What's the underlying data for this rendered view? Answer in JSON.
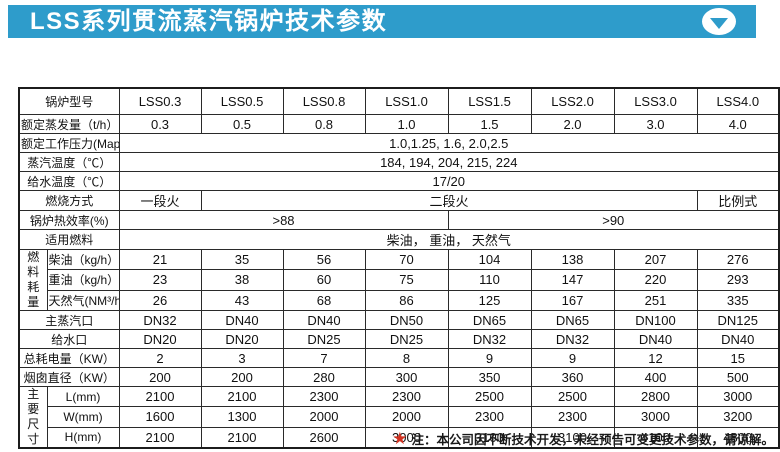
{
  "banner": {
    "title": "LSS系列贯流蒸汽锅炉技术参数",
    "bg_color": "#2e9ccb",
    "arrow_icon": "circle-chevron-down"
  },
  "table": {
    "rows": [
      {
        "cells": [
          {
            "t": "锅炉型号",
            "type": "label",
            "cs": 2
          },
          {
            "t": "LSS0.3",
            "type": "header"
          },
          {
            "t": "LSS0.5",
            "type": "header"
          },
          {
            "t": "LSS0.8",
            "type": "header"
          },
          {
            "t": "LSS1.0",
            "type": "header"
          },
          {
            "t": "LSS1.5",
            "type": "header"
          },
          {
            "t": "LSS2.0",
            "type": "header"
          },
          {
            "t": "LSS3.0",
            "type": "header"
          },
          {
            "t": "LSS4.0",
            "type": "header"
          }
        ]
      },
      {
        "cells": [
          {
            "t": "额定蒸发量（t/h）",
            "type": "label",
            "cs": 2
          },
          {
            "t": "0.3"
          },
          {
            "t": "0.5"
          },
          {
            "t": "0.8"
          },
          {
            "t": "1.0"
          },
          {
            "t": "1.5"
          },
          {
            "t": "2.0"
          },
          {
            "t": "3.0"
          },
          {
            "t": "4.0"
          }
        ]
      },
      {
        "cells": [
          {
            "t": "额定工作压力(Map)",
            "type": "label",
            "cs": 2
          },
          {
            "t": "1.0,1.25, 1.6, 2.0,2.5",
            "cs": 8
          }
        ]
      },
      {
        "cells": [
          {
            "t": "蒸汽温度（℃）",
            "type": "label",
            "cs": 2
          },
          {
            "t": "184, 194, 204, 215, 224",
            "cs": 8
          }
        ]
      },
      {
        "cells": [
          {
            "t": "给水温度（℃）",
            "type": "label",
            "cs": 2
          },
          {
            "t": "17/20",
            "cs": 8
          }
        ]
      },
      {
        "cells": [
          {
            "t": "燃烧方式",
            "type": "label",
            "cs": 2
          },
          {
            "t": "一段火"
          },
          {
            "t": "二段火",
            "cs": 6
          },
          {
            "t": "比例式"
          }
        ]
      },
      {
        "cells": [
          {
            "t": "锅炉热效率(%)",
            "type": "label",
            "cs": 2
          },
          {
            "t": ">88",
            "cs": 4
          },
          {
            "t": ">90",
            "cs": 4
          }
        ]
      },
      {
        "cells": [
          {
            "t": "适用燃料",
            "type": "label",
            "cs": 2
          },
          {
            "t": "柴油， 重油， 天然气",
            "cs": 8
          }
        ]
      },
      {
        "cells": [
          {
            "t": "燃料耗量",
            "type": "group",
            "rs": 3
          },
          {
            "t": "柴油（kg/h）",
            "type": "label"
          },
          {
            "t": "21"
          },
          {
            "t": "35"
          },
          {
            "t": "56"
          },
          {
            "t": "70"
          },
          {
            "t": "104"
          },
          {
            "t": "138"
          },
          {
            "t": "207"
          },
          {
            "t": "276"
          }
        ]
      },
      {
        "cells": [
          {
            "t": "重油（kg/h）",
            "type": "label"
          },
          {
            "t": "23"
          },
          {
            "t": "38"
          },
          {
            "t": "60"
          },
          {
            "t": "75"
          },
          {
            "t": "110"
          },
          {
            "t": "147"
          },
          {
            "t": "220"
          },
          {
            "t": "293"
          }
        ]
      },
      {
        "cells": [
          {
            "t": "天然气(NM³/h)",
            "type": "label"
          },
          {
            "t": "26"
          },
          {
            "t": "43"
          },
          {
            "t": "68"
          },
          {
            "t": "86"
          },
          {
            "t": "125"
          },
          {
            "t": "167"
          },
          {
            "t": "251"
          },
          {
            "t": "335"
          }
        ]
      },
      {
        "cells": [
          {
            "t": "主蒸汽口",
            "type": "label",
            "cs": 2
          },
          {
            "t": "DN32"
          },
          {
            "t": "DN40"
          },
          {
            "t": "DN40"
          },
          {
            "t": "DN50"
          },
          {
            "t": "DN65"
          },
          {
            "t": "DN65"
          },
          {
            "t": "DN100"
          },
          {
            "t": "DN125"
          }
        ]
      },
      {
        "cells": [
          {
            "t": "给水口",
            "type": "label",
            "cs": 2
          },
          {
            "t": "DN20"
          },
          {
            "t": "DN20"
          },
          {
            "t": "DN25"
          },
          {
            "t": "DN25"
          },
          {
            "t": "DN32"
          },
          {
            "t": "DN32"
          },
          {
            "t": "DN40"
          },
          {
            "t": "DN40"
          }
        ]
      },
      {
        "cells": [
          {
            "t": "总耗电量（KW）",
            "type": "label",
            "cs": 2
          },
          {
            "t": "2"
          },
          {
            "t": "3"
          },
          {
            "t": "7"
          },
          {
            "t": "8"
          },
          {
            "t": "9"
          },
          {
            "t": "9"
          },
          {
            "t": "12"
          },
          {
            "t": "15"
          }
        ]
      },
      {
        "cells": [
          {
            "t": "烟囱直径（KW）",
            "type": "label",
            "cs": 2
          },
          {
            "t": "200"
          },
          {
            "t": "200"
          },
          {
            "t": "280"
          },
          {
            "t": "300"
          },
          {
            "t": "350"
          },
          {
            "t": "360"
          },
          {
            "t": "400"
          },
          {
            "t": "500"
          }
        ]
      },
      {
        "cells": [
          {
            "t": "主要尺寸",
            "type": "group",
            "rs": 3
          },
          {
            "t": "L(mm)",
            "type": "label"
          },
          {
            "t": "2100"
          },
          {
            "t": "2100"
          },
          {
            "t": "2300"
          },
          {
            "t": "2300"
          },
          {
            "t": "2500"
          },
          {
            "t": "2500"
          },
          {
            "t": "2800"
          },
          {
            "t": "3000"
          }
        ]
      },
      {
        "cells": [
          {
            "t": "W(mm)",
            "type": "label"
          },
          {
            "t": "1600"
          },
          {
            "t": "1300"
          },
          {
            "t": "2000"
          },
          {
            "t": "2000"
          },
          {
            "t": "2300"
          },
          {
            "t": "2300"
          },
          {
            "t": "3000"
          },
          {
            "t": "3200"
          }
        ]
      },
      {
        "cells": [
          {
            "t": "H(mm)",
            "type": "label"
          },
          {
            "t": "2100"
          },
          {
            "t": "2100"
          },
          {
            "t": "2600"
          },
          {
            "t": "3000"
          },
          {
            "t": "3100"
          },
          {
            "t": "3100"
          },
          {
            "t": "4100"
          },
          {
            "t": "4800"
          }
        ]
      }
    ]
  },
  "note": {
    "star": "★",
    "star_color": "#d23322",
    "text": "注：本公司因不断技术开发，未经预告可变更技术参数，请谅解。"
  }
}
